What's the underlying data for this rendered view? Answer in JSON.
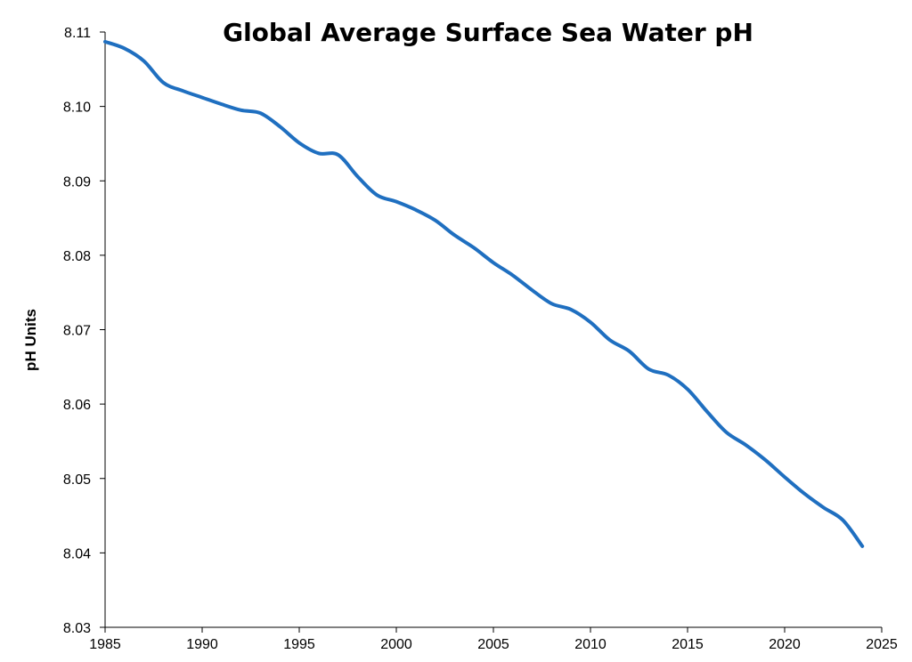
{
  "chart_data": {
    "type": "line",
    "title": "Global Average Surface Sea Water pH",
    "xlabel": "",
    "ylabel": "pH Units",
    "xlim": [
      1985,
      2025
    ],
    "ylim": [
      8.03,
      8.11
    ],
    "x_ticks": [
      1985,
      1990,
      1995,
      2000,
      2005,
      2010,
      2015,
      2020,
      2025
    ],
    "y_ticks": [
      "8.03",
      "8.04",
      "8.05",
      "8.06",
      "8.07",
      "8.08",
      "8.09",
      "8.10",
      "8.11"
    ],
    "grid": false,
    "legend": "none",
    "series": [
      {
        "color": "#1f6fc0",
        "x": [
          1985,
          1986,
          1987,
          1988,
          1989,
          1990,
          1991,
          1992,
          1993,
          1994,
          1995,
          1996,
          1997,
          1998,
          1999,
          2000,
          2001,
          2002,
          2003,
          2004,
          2005,
          2006,
          2007,
          2008,
          2009,
          2010,
          2011,
          2012,
          2013,
          2014,
          2015,
          2016,
          2017,
          2018,
          2019,
          2020,
          2021,
          2022,
          2023,
          2024
        ],
        "y": [
          8.1087,
          8.1078,
          8.1061,
          8.1032,
          8.1021,
          8.1012,
          8.1003,
          8.0995,
          8.0991,
          8.0973,
          8.0951,
          8.0937,
          8.0935,
          8.0906,
          8.0881,
          8.0872,
          8.0861,
          8.0847,
          8.0827,
          8.081,
          8.079,
          8.0773,
          8.0753,
          8.0735,
          8.0727,
          8.071,
          8.0686,
          8.0671,
          8.0647,
          8.0639,
          8.062,
          8.059,
          8.0562,
          8.0545,
          8.0525,
          8.0502,
          8.048,
          8.0461,
          8.0444,
          8.0409
        ]
      }
    ]
  }
}
